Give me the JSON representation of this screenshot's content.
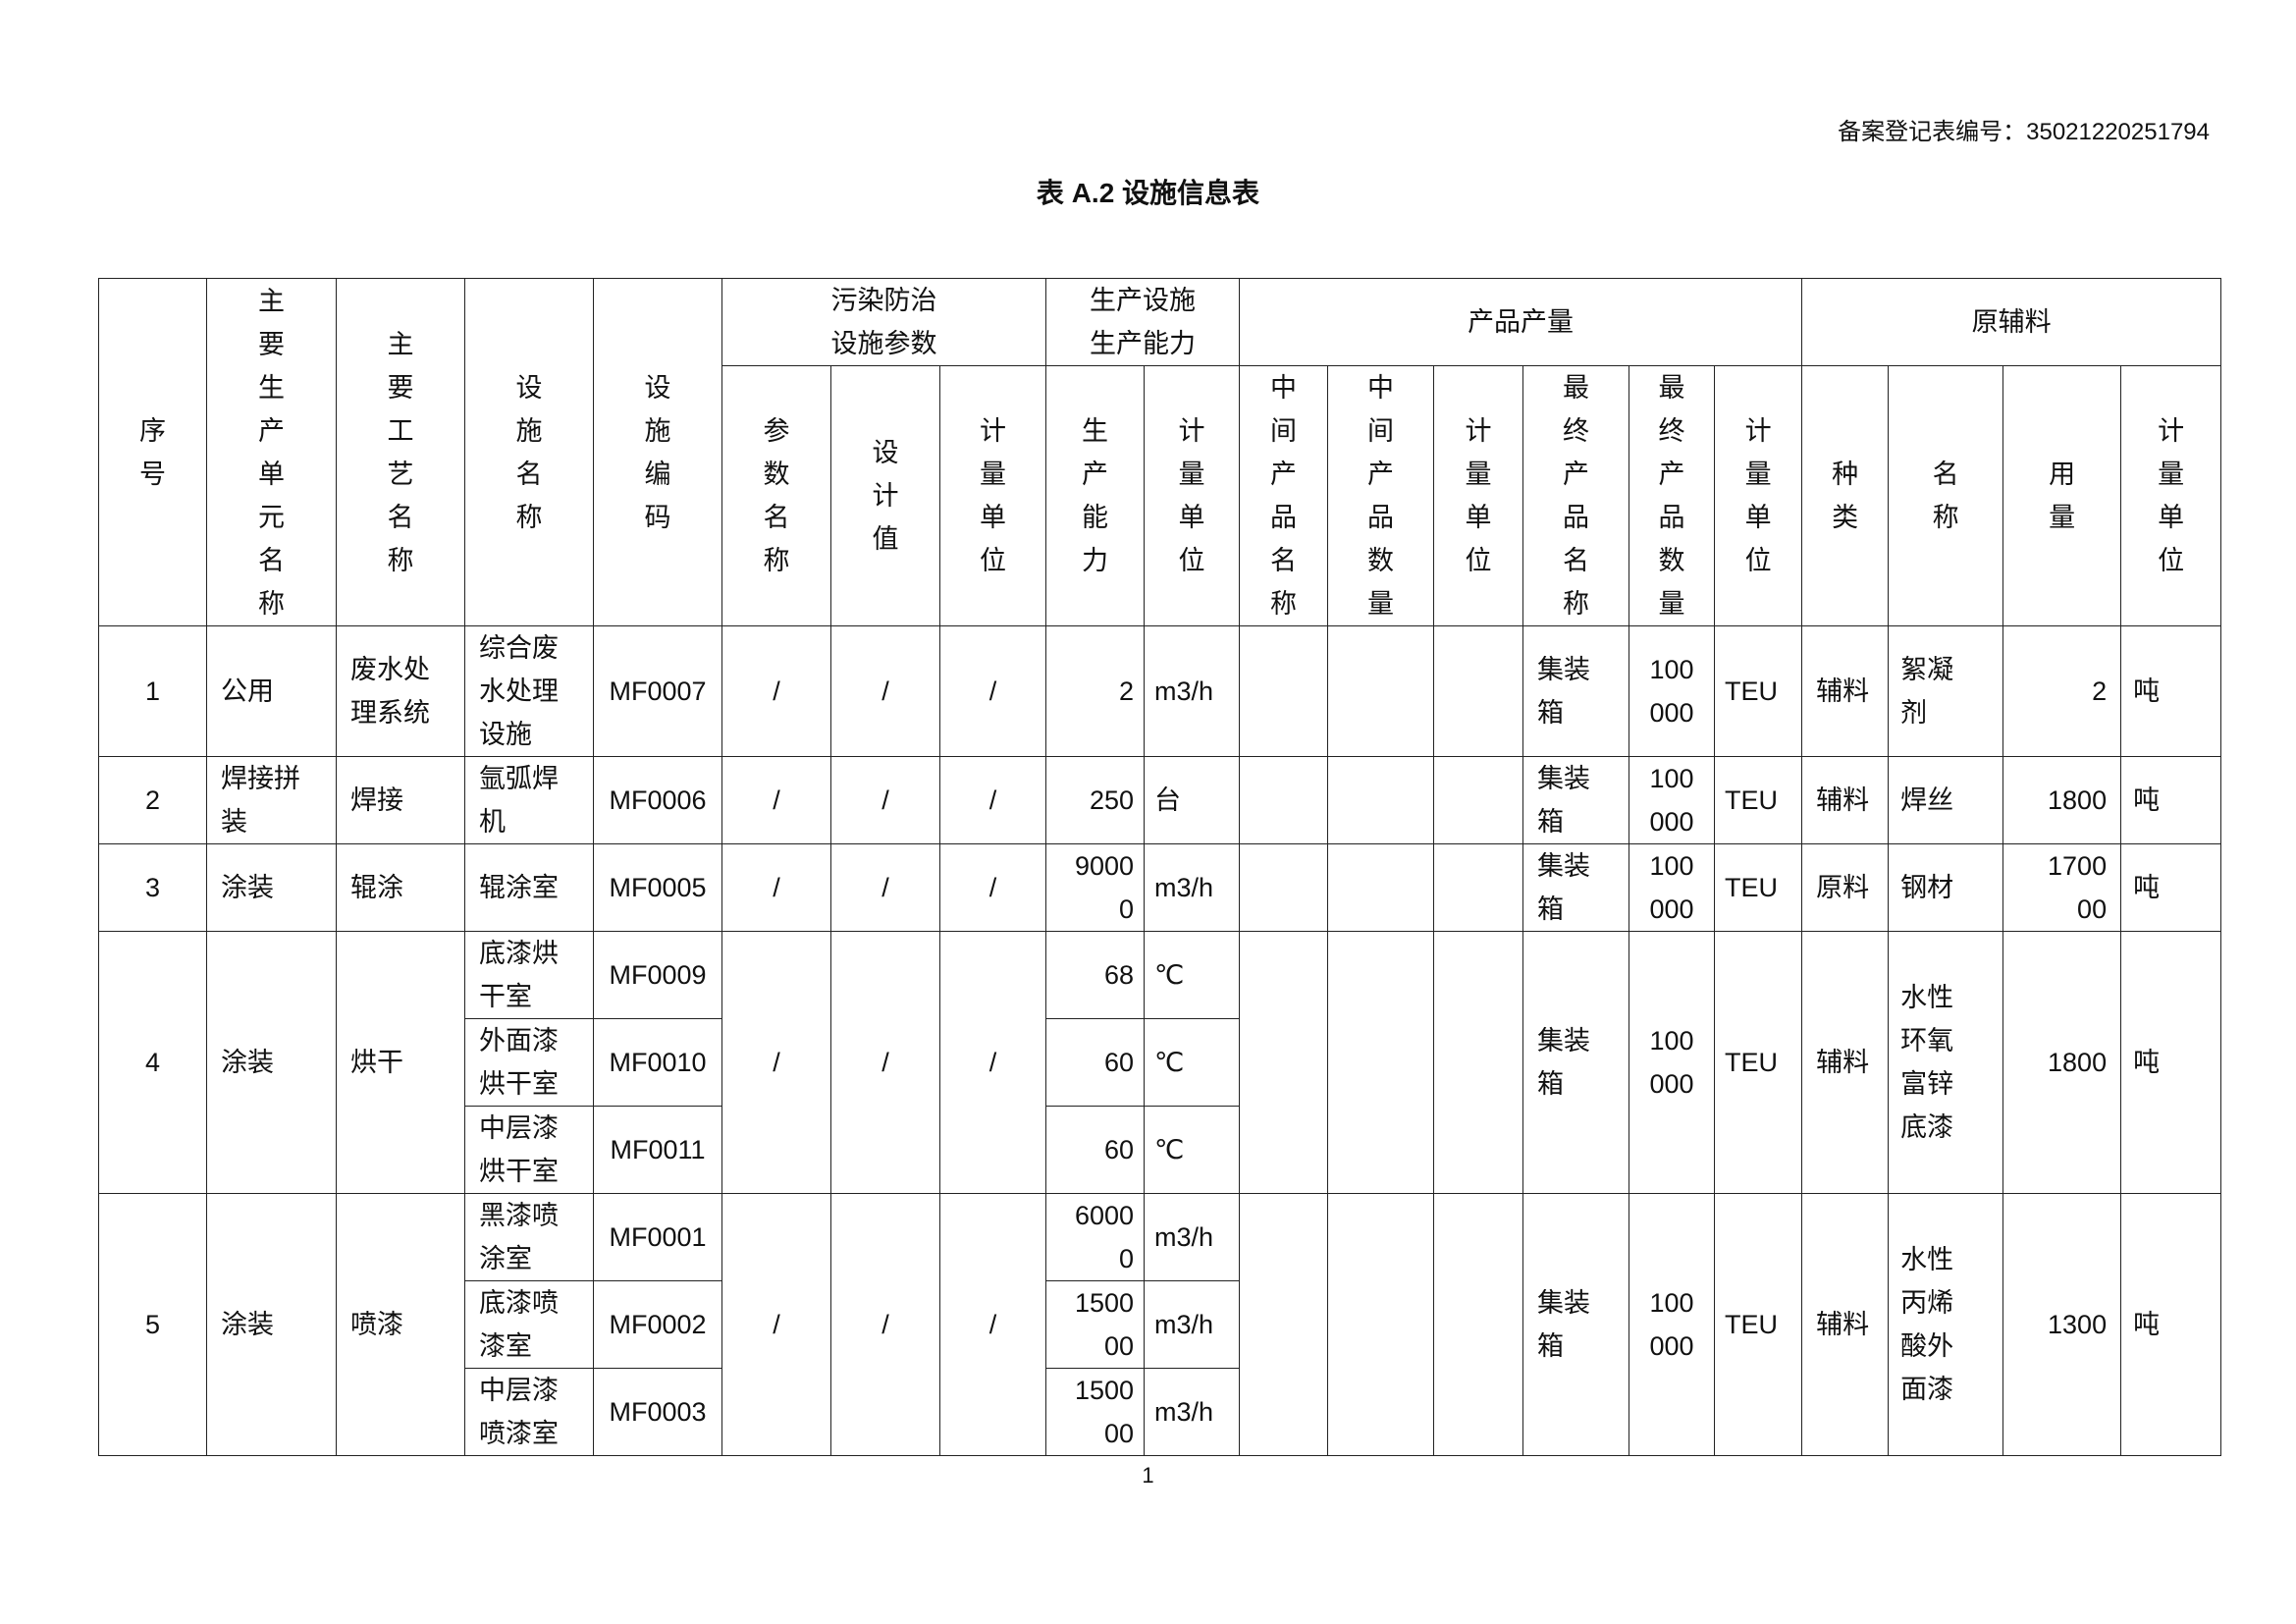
{
  "record_label": "备案登记表编号：",
  "record_number": "35021220251794",
  "title": "表 A.2 设施信息表",
  "page_number": "1",
  "headers": {
    "seq": "序号",
    "unit": "主要生产单元名称",
    "process": "主要工艺名称",
    "facility_name": "设施名称",
    "facility_code": "设施编码",
    "pollution_group": "污染防治设施参数",
    "param_name": "参数名称",
    "design_value": "设计值",
    "param_unit": "计量单位",
    "capacity_group": "生产设施生产能力",
    "capacity": "生产能力",
    "capacity_unit": "计量单位",
    "product_group": "产品产量",
    "mid_name": "中间产品名称",
    "mid_qty": "中间产品数量",
    "mid_unit": "计量单位",
    "final_name": "最终产品名称",
    "final_qty": "最终产品数量",
    "final_unit": "计量单位",
    "material_group": "原辅料",
    "kind": "种类",
    "material": "名称",
    "amount": "用量",
    "amount_unit": "计量单位"
  },
  "rows": [
    {
      "seq": "1",
      "unit": "公用",
      "process": "废水处理系统",
      "facilities": [
        {
          "name": "综合废水处理设施",
          "code": "MF0007",
          "capacity": "2",
          "capacity_unit": "m3/h"
        }
      ],
      "param_name": "/",
      "design_value": "/",
      "param_unit": "/",
      "mid_name": "",
      "mid_qty": "",
      "mid_unit": "",
      "final_name": "集装箱",
      "final_qty": "100000",
      "final_unit": "TEU",
      "kind": "辅料",
      "material": "絮凝剂",
      "amount": "2",
      "amount_unit": "吨"
    },
    {
      "seq": "2",
      "unit": "焊接拼装",
      "process": "焊接",
      "facilities": [
        {
          "name": "氩弧焊机",
          "code": "MF0006",
          "capacity": "250",
          "capacity_unit": "台"
        }
      ],
      "param_name": "/",
      "design_value": "/",
      "param_unit": "/",
      "mid_name": "",
      "mid_qty": "",
      "mid_unit": "",
      "final_name": "集装箱",
      "final_qty": "100000",
      "final_unit": "TEU",
      "kind": "辅料",
      "material": "焊丝",
      "amount": "1800",
      "amount_unit": "吨"
    },
    {
      "seq": "3",
      "unit": "涂装",
      "process": "辊涂",
      "facilities": [
        {
          "name": "辊涂室",
          "code": "MF0005",
          "capacity": "90000",
          "capacity_unit": "m3/h"
        }
      ],
      "param_name": "/",
      "design_value": "/",
      "param_unit": "/",
      "mid_name": "",
      "mid_qty": "",
      "mid_unit": "",
      "final_name": "集装箱",
      "final_qty": "100000",
      "final_unit": "TEU",
      "kind": "原料",
      "material": "钢材",
      "amount": "170000",
      "amount_unit": "吨"
    },
    {
      "seq": "4",
      "unit": "涂装",
      "process": "烘干",
      "facilities": [
        {
          "name": "底漆烘干室",
          "code": "MF0009",
          "capacity": "68",
          "capacity_unit": "℃"
        },
        {
          "name": "外面漆烘干室",
          "code": "MF0010",
          "capacity": "60",
          "capacity_unit": "℃"
        },
        {
          "name": "中层漆烘干室",
          "code": "MF0011",
          "capacity": "60",
          "capacity_unit": "℃"
        }
      ],
      "param_name": "/",
      "design_value": "/",
      "param_unit": "/",
      "mid_name": "",
      "mid_qty": "",
      "mid_unit": "",
      "final_name": "集装箱",
      "final_qty": "100000",
      "final_unit": "TEU",
      "kind": "辅料",
      "material": "水性环氧富锌底漆",
      "amount": "1800",
      "amount_unit": "吨"
    },
    {
      "seq": "5",
      "unit": "涂装",
      "process": "喷漆",
      "facilities": [
        {
          "name": "黑漆喷涂室",
          "code": "MF0001",
          "capacity": "60000",
          "capacity_unit": "m3/h"
        },
        {
          "name": "底漆喷漆室",
          "code": "MF0002",
          "capacity": "150000",
          "capacity_unit": "m3/h"
        },
        {
          "name": "中层漆喷漆室",
          "code": "MF0003",
          "capacity": "150000",
          "capacity_unit": "m3/h"
        }
      ],
      "param_name": "/",
      "design_value": "/",
      "param_unit": "/",
      "mid_name": "",
      "mid_qty": "",
      "mid_unit": "",
      "final_name": "集装箱",
      "final_qty": "100000",
      "final_unit": "TEU",
      "kind": "辅料",
      "material": "水性丙烯酸外面漆",
      "amount": "1300",
      "amount_unit": "吨"
    }
  ]
}
